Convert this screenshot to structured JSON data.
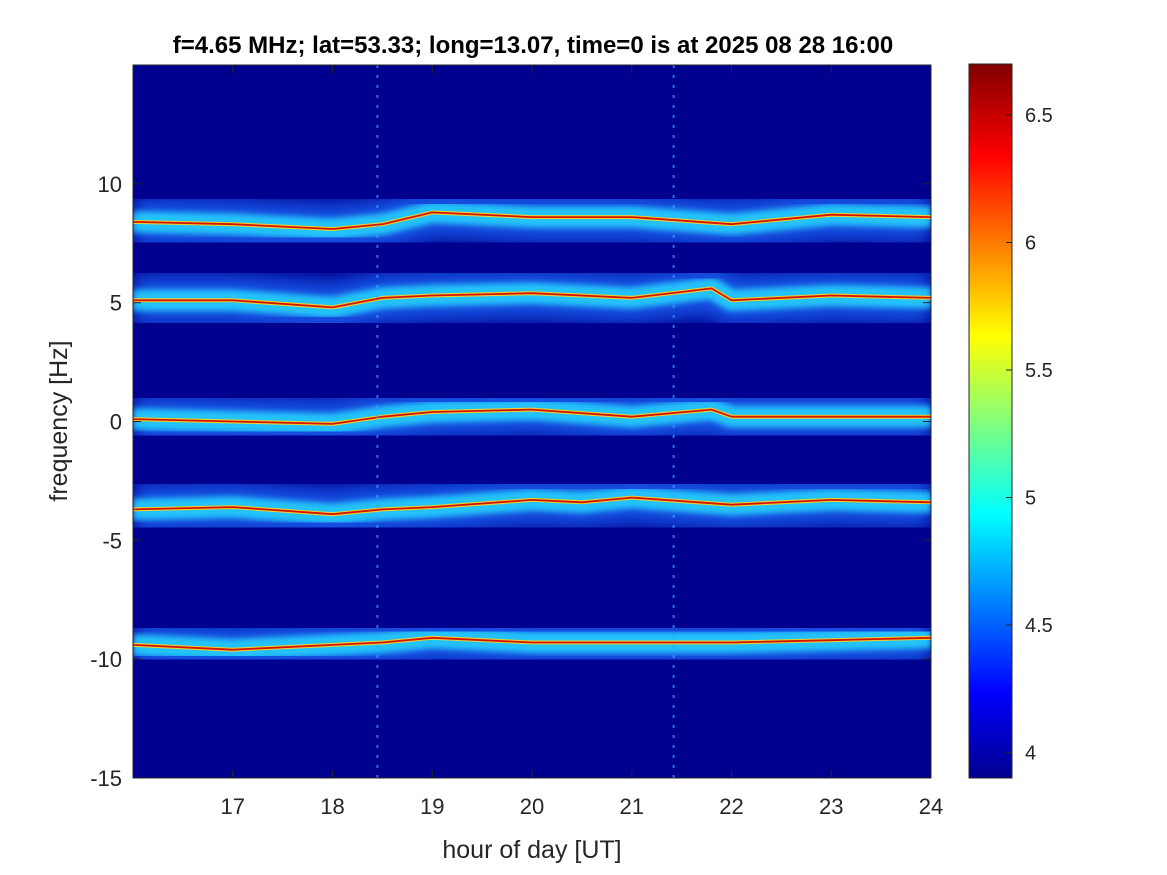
{
  "chart_data": {
    "type": "heatmap",
    "title": "f=4.65 MHz;  lat=53.33; long=13.07, time=0 is at 2025 08 28 16:00",
    "xlabel": "hour of day [UT]",
    "ylabel": "frequency [Hz]",
    "xlim": [
      16,
      24
    ],
    "ylim": [
      -15,
      15
    ],
    "xticks": [
      17,
      18,
      19,
      20,
      21,
      22,
      23,
      24
    ],
    "yticks": [
      -15,
      -10,
      -5,
      0,
      5,
      10
    ],
    "colorbar": {
      "range": [
        3.9,
        6.7
      ],
      "ticks": [
        4,
        4.5,
        5,
        5.5,
        6,
        6.5
      ],
      "colormap": "jet"
    },
    "background_color": "#00008f",
    "bands": [
      {
        "center": 8.5,
        "x": [
          16,
          17,
          18,
          18.5,
          19,
          20,
          21,
          22,
          23,
          24
        ],
        "y": [
          8.4,
          8.3,
          8.1,
          8.3,
          8.8,
          8.6,
          8.6,
          8.3,
          8.7,
          8.6
        ]
      },
      {
        "center": 5.2,
        "x": [
          16,
          17,
          18,
          18.5,
          19,
          20,
          21,
          21.8,
          22,
          23,
          24
        ],
        "y": [
          5.1,
          5.1,
          4.8,
          5.2,
          5.3,
          5.4,
          5.2,
          5.6,
          5.1,
          5.3,
          5.2
        ]
      },
      {
        "center": 0.2,
        "x": [
          16,
          17,
          18,
          18.5,
          19,
          20,
          21,
          21.8,
          22,
          23,
          24
        ],
        "y": [
          0.1,
          0.0,
          -0.1,
          0.2,
          0.4,
          0.5,
          0.2,
          0.5,
          0.2,
          0.2,
          0.2
        ]
      },
      {
        "center": -3.6,
        "x": [
          16,
          17,
          18,
          18.5,
          19,
          20,
          20.5,
          21,
          22,
          23,
          24
        ],
        "y": [
          -3.7,
          -3.6,
          -3.9,
          -3.7,
          -3.6,
          -3.3,
          -3.4,
          -3.2,
          -3.5,
          -3.3,
          -3.4
        ]
      },
      {
        "center": -9.3,
        "x": [
          16,
          17,
          18,
          18.5,
          19,
          20,
          21,
          22,
          23,
          24
        ],
        "y": [
          -9.4,
          -9.6,
          -9.4,
          -9.3,
          -9.1,
          -9.3,
          -9.3,
          -9.3,
          -9.2,
          -9.1
        ]
      }
    ],
    "vertical_artifacts_hours": [
      18.45,
      21.42
    ]
  }
}
